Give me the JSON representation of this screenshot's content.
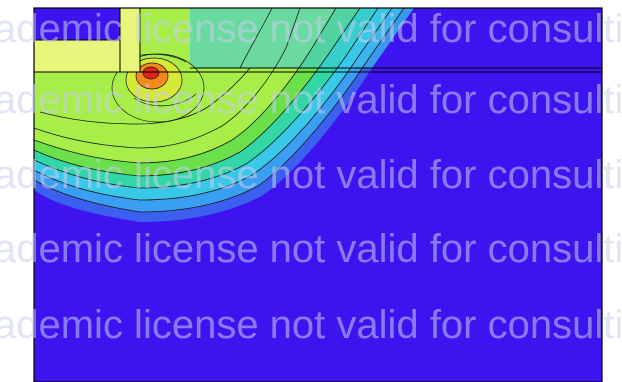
{
  "plot": {
    "background_color": "#3d14f0",
    "frame_color": "#000000",
    "colors": {
      "red": "#e2231a",
      "orange": "#f28a1e",
      "yellow": "#d7e838",
      "light_green": "#a7ef48",
      "green": "#6be04a",
      "teal": "#33d6a6",
      "cyan": "#3ac8e9",
      "sky": "#3a9ef2",
      "blue": "#3b60f0",
      "violet": "#3d14f0",
      "pale_yellow": "#e7f57a"
    }
  },
  "watermark": {
    "text": "ademic license not valid for consulting",
    "rows": [
      "ademic license not valid for consulting",
      "ademic license not valid for consulting",
      "ademic license not valid for consulting",
      "ademic license not valid for consulting",
      "ademic license not valid for consulting"
    ]
  }
}
